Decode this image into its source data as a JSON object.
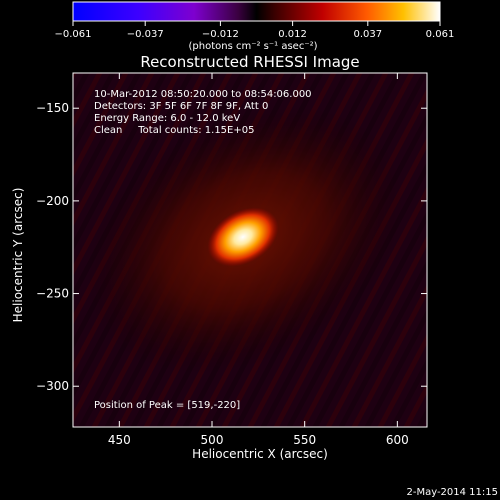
{
  "chart_data": {
    "type": "heatmap",
    "title": "Reconstructed RHESSI Image",
    "xlabel": "Heliocentric X (arcsec)",
    "ylabel": "Heliocentric Y (arcsec)",
    "xlim": [
      425,
      616
    ],
    "ylim": [
      -322,
      -131
    ],
    "x_ticks": [
      450,
      500,
      550,
      600
    ],
    "y_ticks": [
      -150,
      -200,
      -250,
      -300
    ],
    "colorbar": {
      "min": -0.061,
      "max": 0.061,
      "tick_values": [
        -0.061,
        -0.037,
        -0.012,
        0.012,
        0.037,
        0.061
      ],
      "tick_labels": [
        "−0.061",
        "−0.037",
        "−0.012",
        "0.012",
        "0.037",
        "0.061"
      ],
      "unit_label": "(photons cm⁻² s⁻¹ asec⁻²)"
    },
    "source": {
      "peak": [
        519,
        -220
      ],
      "description": "single bright elliptical source, elongated SW-NE, with diagonal striping background",
      "peak_value": 0.061
    },
    "annotations": [
      "10-Mar-2012 08:50:20.000 to 08:54:06.000",
      "Detectors: 3F 5F 6F 7F 8F 9F, Att 0",
      "Energy Range: 6.0 - 12.0 keV",
      "Clean     Total counts: 1.15E+05"
    ],
    "peak_label": "Position of Peak = [519,-220]",
    "timestamp": "2-May-2014 11:15"
  }
}
